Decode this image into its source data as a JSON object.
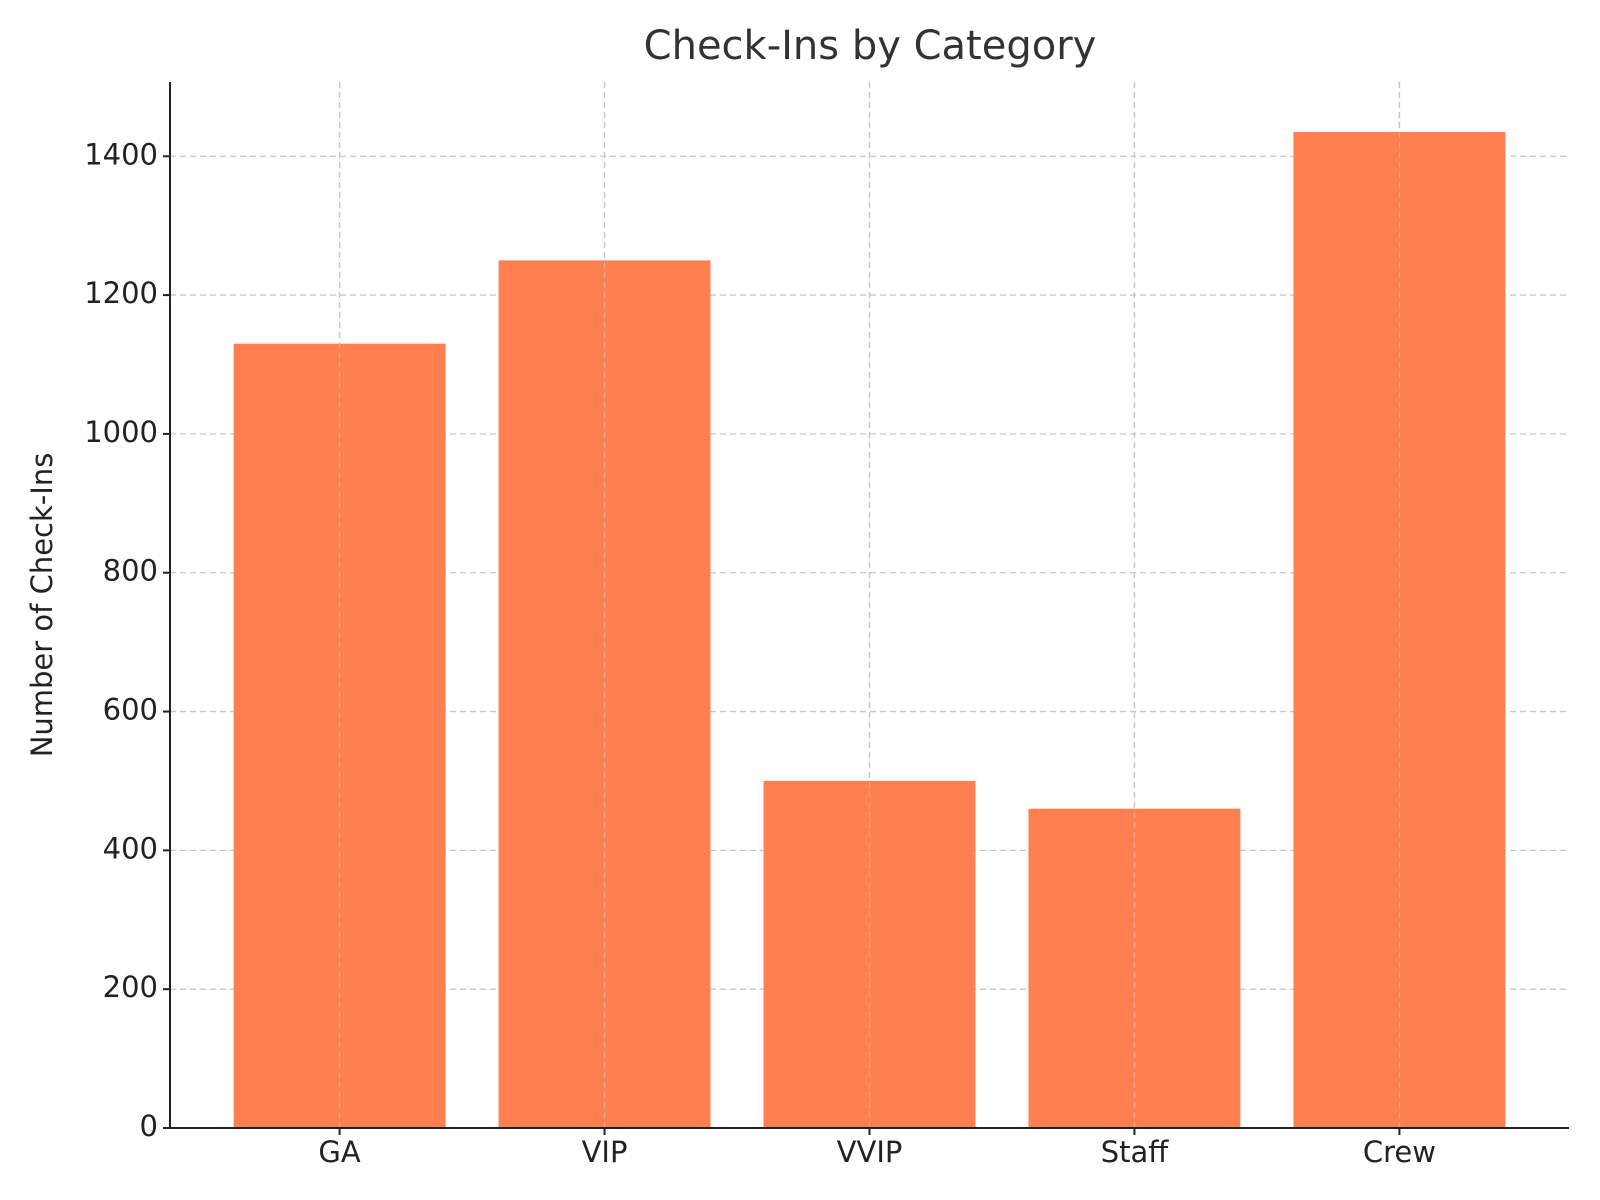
{
  "chart_data": {
    "type": "bar",
    "title": "Check-Ins by Category",
    "y_label": "Number of Check-Ins",
    "categories": [
      "GA",
      "VIP",
      "VVIP",
      "Staff",
      "Crew"
    ],
    "values": [
      1130,
      1250,
      500,
      460,
      1435
    ],
    "color": "#ff7f50",
    "ylim": [
      0,
      1507
    ],
    "yticks": [
      0,
      200,
      400,
      600,
      800,
      1000,
      1200,
      1400
    ],
    "grid": true
  }
}
